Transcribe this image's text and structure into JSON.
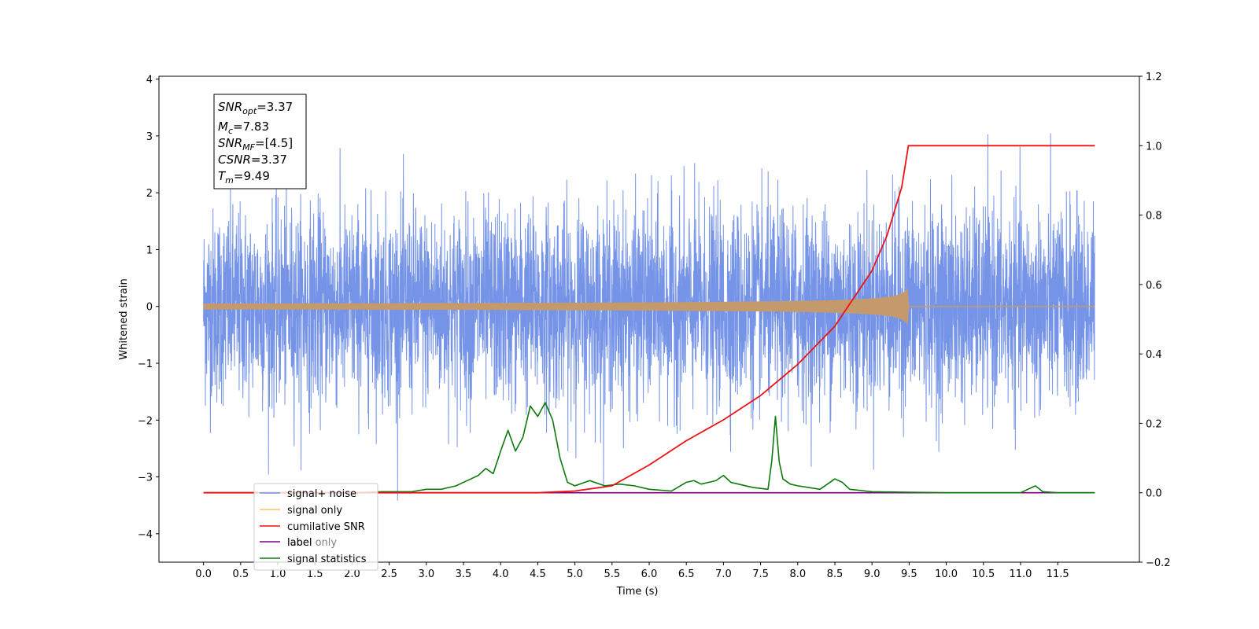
{
  "chart_data": {
    "type": "line",
    "xlabel": "Time (s)",
    "ylabel": "Whitened strain",
    "xlim": [
      -0.6,
      12.6
    ],
    "ylim": [
      -4.5,
      4.05
    ],
    "y2lim": [
      -0.2,
      1.2
    ],
    "x_ticks": [
      "0.0",
      "0.5",
      "1.0",
      "1.5",
      "2.0",
      "2.5",
      "3.0",
      "3.5",
      "4.0",
      "4.5",
      "5.0",
      "5.5",
      "6.0",
      "6.5",
      "7.0",
      "7.5",
      "8.0",
      "8.5",
      "9.0",
      "9.5",
      "10.0",
      "10.5",
      "11.0",
      "11.5"
    ],
    "y_ticks": [
      "4",
      "3",
      "2",
      "1",
      "0",
      "−1",
      "−2",
      "−3",
      "−4"
    ],
    "y2_ticks": [
      "1.2",
      "1.0",
      "0.8",
      "0.6",
      "0.4",
      "0.2",
      "0.0",
      "−0.2"
    ],
    "colors": {
      "signal_noise": "#6f8ee6",
      "signal_only": "#f5c26b",
      "cumulative_snr": "#ee1111",
      "label": "#800080",
      "signal_statistics": "#0d7a0d",
      "signal_envelope": "#c49a6c"
    },
    "legend": {
      "placement": "lower-left",
      "entries": [
        "signal+ noise",
        "signal only",
        "cumilative SNR",
        "label",
        "signal statistics"
      ],
      "ghost_text": "label only"
    },
    "annotation": {
      "snr_opt": "=3.37",
      "mc": "=7.83",
      "snr_mf": "=[4.5]",
      "csnr": "=3.37",
      "tm": "=9.49"
    },
    "series": [
      {
        "name": "signal+ noise",
        "axis": "left",
        "description_range": [
          -4.1,
          3.65
        ],
        "x_range": [
          0.0,
          12.0
        ]
      },
      {
        "name": "signal only",
        "axis": "left",
        "merger_time": 9.49,
        "peak_amplitude": 0.35
      },
      {
        "name": "cumilative SNR",
        "axis": "right",
        "x": [
          0.0,
          4.0,
          4.5,
          5.0,
          5.5,
          6.0,
          6.5,
          7.0,
          7.5,
          8.0,
          8.5,
          9.0,
          9.2,
          9.4,
          9.49,
          12.0
        ],
        "y": [
          0.0,
          0.0,
          0.0,
          0.005,
          0.02,
          0.08,
          0.15,
          0.21,
          0.28,
          0.37,
          0.48,
          0.64,
          0.74,
          0.88,
          1.0,
          1.0
        ]
      },
      {
        "name": "label",
        "axis": "right",
        "x": [
          0.0,
          12.0
        ],
        "y": [
          0.0,
          0.0
        ]
      },
      {
        "name": "signal statistics",
        "axis": "right",
        "x": [
          0.0,
          2.0,
          2.4,
          2.8,
          3.0,
          3.2,
          3.4,
          3.6,
          3.7,
          3.8,
          3.9,
          4.0,
          4.1,
          4.2,
          4.3,
          4.4,
          4.5,
          4.6,
          4.7,
          4.8,
          4.9,
          5.0,
          5.2,
          5.4,
          5.6,
          5.8,
          6.0,
          6.3,
          6.5,
          6.6,
          6.7,
          6.8,
          6.9,
          7.0,
          7.1,
          7.2,
          7.4,
          7.6,
          7.65,
          7.7,
          7.75,
          7.8,
          7.9,
          8.0,
          8.3,
          8.5,
          8.6,
          8.7,
          9.0,
          10.0,
          11.0,
          11.2,
          11.3,
          11.5,
          12.0
        ],
        "y": [
          0.0,
          0.0,
          0.003,
          0.003,
          0.01,
          0.01,
          0.02,
          0.04,
          0.05,
          0.07,
          0.055,
          0.12,
          0.18,
          0.12,
          0.16,
          0.25,
          0.22,
          0.26,
          0.21,
          0.1,
          0.03,
          0.02,
          0.035,
          0.02,
          0.025,
          0.02,
          0.01,
          0.005,
          0.03,
          0.035,
          0.025,
          0.03,
          0.035,
          0.05,
          0.03,
          0.025,
          0.015,
          0.01,
          0.09,
          0.22,
          0.09,
          0.04,
          0.025,
          0.02,
          0.01,
          0.04,
          0.03,
          0.01,
          0.003,
          0.0,
          0.0,
          0.02,
          0.003,
          0.0,
          0.0
        ]
      }
    ]
  }
}
